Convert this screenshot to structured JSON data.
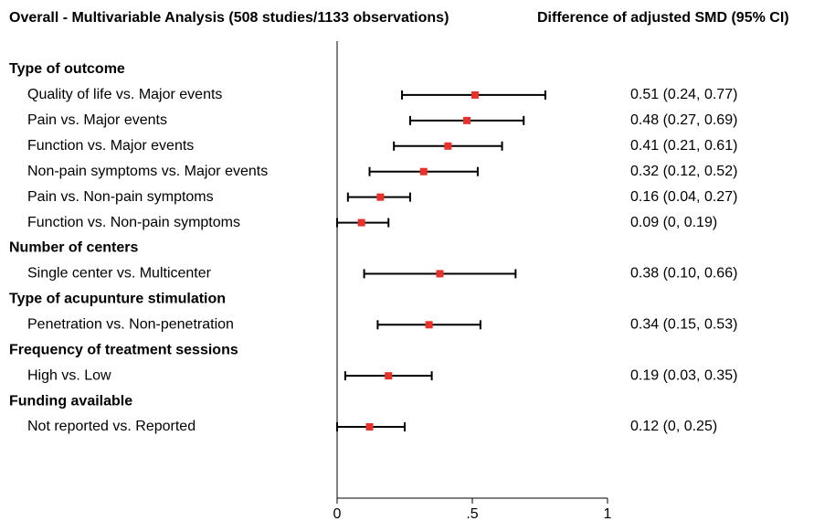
{
  "chart_data": {
    "type": "forest",
    "title": "Overall - Multivariable Analysis (508 studies/1133 observations)",
    "column_title": "Difference of adjusted SMD (95% CI)",
    "marker_color": "#e8312a",
    "ci_color": "#000000",
    "xlim": [
      0,
      1
    ],
    "xticks": [
      0,
      {
        "value": 0.5,
        "label": ".5"
      },
      1
    ],
    "groups": [
      {
        "name": "Type of outcome",
        "rows": [
          {
            "label": "Quality of life vs. Major events",
            "value": 0.51,
            "lower": 0.24,
            "upper": 0.77,
            "value_label": "0.51 (0.24, 0.77)"
          },
          {
            "label": "Pain vs. Major events",
            "value": 0.48,
            "lower": 0.27,
            "upper": 0.69,
            "value_label": "0.48 (0.27, 0.69)"
          },
          {
            "label": "Function vs. Major events",
            "value": 0.41,
            "lower": 0.21,
            "upper": 0.61,
            "value_label": "0.41 (0.21, 0.61)"
          },
          {
            "label": "Non-pain symptoms vs. Major events",
            "value": 0.32,
            "lower": 0.12,
            "upper": 0.52,
            "value_label": "0.32 (0.12, 0.52)"
          },
          {
            "label": "Pain vs. Non-pain symptoms",
            "value": 0.16,
            "lower": 0.04,
            "upper": 0.27,
            "value_label": "0.16 (0.04, 0.27)"
          },
          {
            "label": "Function vs. Non-pain symptoms",
            "value": 0.09,
            "lower": 0,
            "upper": 0.19,
            "value_label": "0.09 (0, 0.19)"
          }
        ]
      },
      {
        "name": "Number of centers",
        "rows": [
          {
            "label": "Single center vs. Multicenter",
            "value": 0.38,
            "lower": 0.1,
            "upper": 0.66,
            "value_label": "0.38 (0.10, 0.66)"
          }
        ]
      },
      {
        "name": "Type of acupunture stimulation",
        "rows": [
          {
            "label": "Penetration vs. Non-penetration",
            "value": 0.34,
            "lower": 0.15,
            "upper": 0.53,
            "value_label": "0.34 (0.15, 0.53)"
          }
        ]
      },
      {
        "name": "Frequency of treatment sessions",
        "rows": [
          {
            "label": "High vs. Low",
            "value": 0.19,
            "lower": 0.03,
            "upper": 0.35,
            "value_label": "0.19 (0.03, 0.35)"
          }
        ]
      },
      {
        "name": "Funding available",
        "rows": [
          {
            "label": "Not reported vs. Reported",
            "value": 0.12,
            "lower": 0,
            "upper": 0.25,
            "value_label": "0.12 (0, 0.25)"
          }
        ]
      }
    ]
  }
}
